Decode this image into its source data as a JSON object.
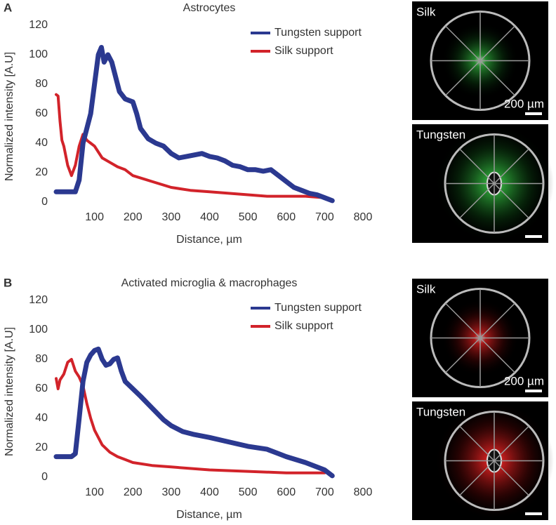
{
  "chart_data": [
    {
      "type": "line",
      "panel_label": "A",
      "title": "Astrocytes",
      "x_label": "Distance, µm",
      "y_label": "Normalized intensity [A.U]",
      "xlim": [
        0,
        800
      ],
      "xticks": [
        100,
        200,
        300,
        400,
        500,
        600,
        700,
        800
      ],
      "ylim": [
        0,
        120
      ],
      "yticks": [
        0,
        20,
        40,
        60,
        80,
        100,
        120
      ],
      "grid": false,
      "legend": "upper right",
      "series": [
        {
          "name": "Tungsten support",
          "color": "#2b3990",
          "width": 7,
          "x": [
            0,
            20,
            50,
            60,
            70,
            80,
            90,
            100,
            110,
            118,
            125,
            135,
            145,
            155,
            165,
            180,
            200,
            210,
            220,
            240,
            260,
            280,
            300,
            320,
            340,
            360,
            380,
            400,
            420,
            440,
            460,
            480,
            500,
            520,
            540,
            560,
            580,
            600,
            620,
            640,
            660,
            680,
            700,
            720
          ],
          "values": [
            7,
            7,
            7,
            15,
            40,
            50,
            60,
            80,
            100,
            105,
            95,
            100,
            95,
            85,
            75,
            70,
            68,
            60,
            50,
            43,
            40,
            38,
            33,
            30,
            31,
            32,
            33,
            31,
            30,
            28,
            25,
            24,
            22,
            22,
            21,
            22,
            18,
            14,
            10,
            8,
            6,
            5,
            3,
            1
          ]
        },
        {
          "name": "Silk support",
          "color": "#d2232a",
          "width": 4,
          "x": [
            0,
            5,
            10,
            15,
            20,
            30,
            40,
            50,
            60,
            70,
            80,
            90,
            100,
            120,
            140,
            160,
            180,
            200,
            250,
            300,
            350,
            400,
            450,
            500,
            550,
            600,
            650,
            700
          ],
          "values": [
            73,
            72,
            55,
            42,
            38,
            25,
            18,
            25,
            38,
            46,
            42,
            40,
            38,
            30,
            27,
            24,
            22,
            18,
            14,
            10,
            8,
            7,
            6,
            5,
            4,
            4,
            4,
            3
          ]
        }
      ],
      "images": [
        {
          "label": "Silk",
          "scale_bar": "200 µm"
        },
        {
          "label": "Tungsten"
        }
      ]
    },
    {
      "type": "line",
      "panel_label": "B",
      "title": "Activated microglia & macrophages",
      "x_label": "Distance, µm",
      "y_label": "Normalized intensity [A.U]",
      "xlim": [
        0,
        800
      ],
      "xticks": [
        100,
        200,
        300,
        400,
        500,
        600,
        700,
        800
      ],
      "ylim": [
        0,
        120
      ],
      "yticks": [
        0,
        20,
        40,
        60,
        80,
        100,
        120
      ],
      "grid": false,
      "legend": "upper right",
      "series": [
        {
          "name": "Tungsten support",
          "color": "#2b3990",
          "width": 7,
          "x": [
            0,
            40,
            50,
            60,
            70,
            80,
            90,
            100,
            110,
            120,
            130,
            140,
            150,
            160,
            170,
            180,
            200,
            220,
            250,
            280,
            300,
            330,
            360,
            400,
            450,
            500,
            550,
            580,
            600,
            650,
            700,
            720
          ],
          "values": [
            14,
            14,
            16,
            40,
            65,
            78,
            83,
            86,
            87,
            80,
            76,
            77,
            80,
            81,
            72,
            65,
            60,
            55,
            47,
            39,
            35,
            31,
            29,
            27,
            24,
            21,
            19,
            16,
            14,
            10,
            5,
            1
          ]
        },
        {
          "name": "Silk support",
          "color": "#d2232a",
          "width": 4,
          "x": [
            0,
            5,
            10,
            20,
            30,
            40,
            50,
            60,
            70,
            80,
            90,
            100,
            120,
            140,
            160,
            180,
            200,
            250,
            300,
            400,
            500,
            600,
            700
          ],
          "values": [
            67,
            60,
            66,
            70,
            78,
            80,
            72,
            68,
            62,
            50,
            40,
            32,
            22,
            17,
            14,
            12,
            10,
            8,
            7,
            5,
            4,
            3,
            3
          ]
        }
      ],
      "images": [
        {
          "label": "Silk",
          "scale_bar": "200 µm"
        },
        {
          "label": "Tungsten"
        }
      ]
    }
  ]
}
